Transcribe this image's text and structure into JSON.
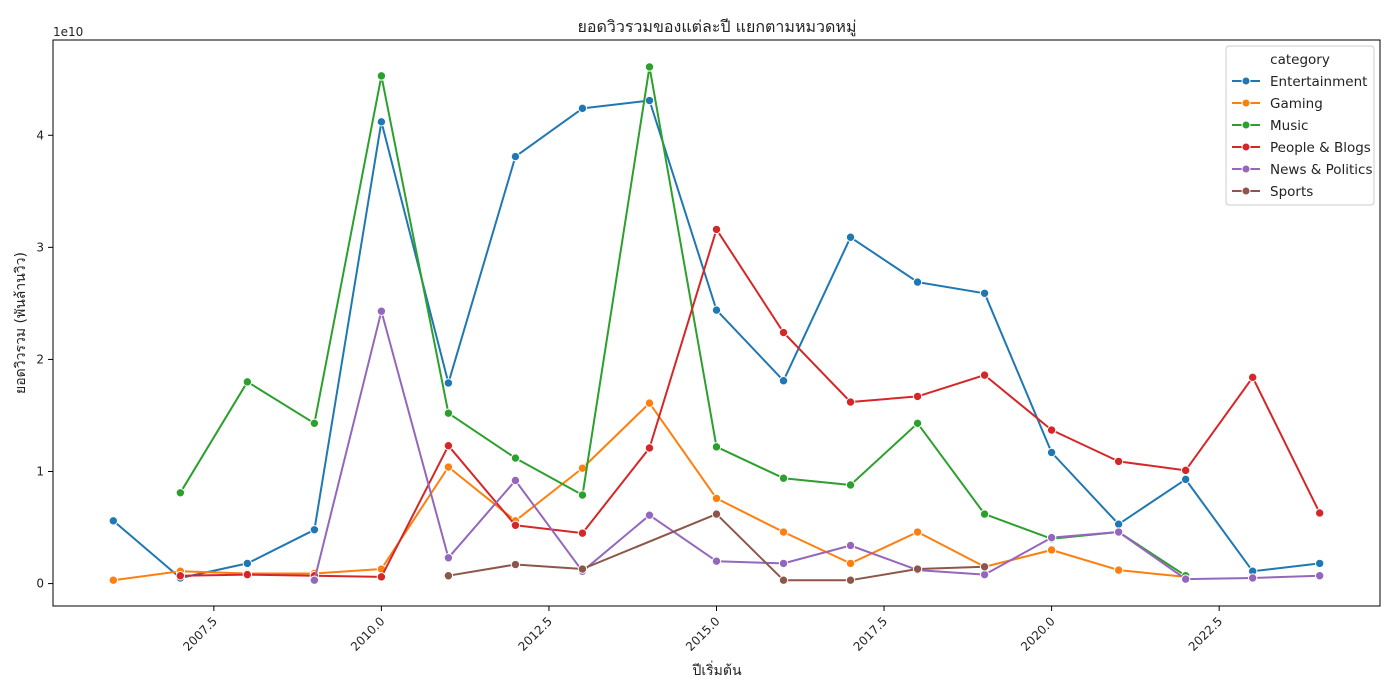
{
  "chart_data": {
    "type": "line",
    "title": "ยอดวิวรวมของแต่ละปี แยกตามหมวดหมู่",
    "xlabel": "ปีเริ่มต้น",
    "ylabel": "ยอดวิวรวม (พันล้านวิว)",
    "y_offset_label": "1e10",
    "xlim": [
      2005.1,
      2024.9
    ],
    "ylim": [
      -0.2,
      4.85
    ],
    "x_ticks": [
      2007.5,
      2010.0,
      2012.5,
      2015.0,
      2017.5,
      2020.0,
      2022.5
    ],
    "x_tick_labels": [
      "2007.5",
      "2010.0",
      "2012.5",
      "2015.0",
      "2017.5",
      "2020.0",
      "2022.5"
    ],
    "y_ticks": [
      0,
      1,
      2,
      3,
      4
    ],
    "y_tick_labels": [
      "0",
      "1",
      "2",
      "3",
      "4"
    ],
    "grid": false,
    "legend": {
      "title": "category",
      "placement": "top-right"
    },
    "series": [
      {
        "name": "Entertainment",
        "color": "#1f77b4",
        "x": [
          2006,
          2007,
          2008,
          2009,
          2010,
          2011,
          2012,
          2013,
          2014,
          2015,
          2016,
          2017,
          2018,
          2019,
          2020,
          2021,
          2022,
          2023,
          2024
        ],
        "y": [
          0.56,
          0.05,
          0.18,
          0.48,
          4.12,
          1.79,
          3.81,
          4.24,
          4.31,
          2.44,
          1.81,
          3.09,
          2.69,
          2.59,
          1.17,
          0.53,
          0.93,
          0.11,
          0.18
        ]
      },
      {
        "name": "Gaming",
        "color": "#ff7f0e",
        "x": [
          2006,
          2007,
          2008,
          2009,
          2010,
          2011,
          2012,
          2013,
          2014,
          2015,
          2016,
          2017,
          2018,
          2019,
          2020,
          2021,
          2022
        ],
        "y": [
          0.03,
          0.11,
          0.09,
          0.09,
          0.13,
          1.04,
          0.56,
          1.03,
          1.61,
          0.76,
          0.46,
          0.18,
          0.46,
          0.15,
          0.3,
          0.12,
          0.06
        ]
      },
      {
        "name": "Music",
        "color": "#2ca02c",
        "x": [
          2007,
          2008,
          2009,
          2010,
          2011,
          2012,
          2013,
          2014,
          2015,
          2016,
          2017,
          2018,
          2019,
          2020,
          2021,
          2022
        ],
        "y": [
          0.81,
          1.8,
          1.43,
          4.53,
          1.52,
          1.12,
          0.79,
          4.61,
          1.22,
          0.94,
          0.88,
          1.43,
          0.62,
          0.4,
          0.46,
          0.07
        ]
      },
      {
        "name": "People & Blogs",
        "color": "#d62728",
        "x": [
          2007,
          2008,
          2009,
          2010,
          2011,
          2012,
          2013,
          2014,
          2015,
          2016,
          2017,
          2018,
          2019,
          2020,
          2021,
          2022,
          2023,
          2024
        ],
        "y": [
          0.07,
          0.08,
          0.07,
          0.06,
          1.23,
          0.52,
          0.45,
          1.21,
          3.16,
          2.24,
          1.62,
          1.67,
          1.86,
          1.37,
          1.09,
          1.01,
          1.84,
          0.63
        ]
      },
      {
        "name": "News & Politics",
        "color": "#9467bd",
        "x": [
          2009,
          2010,
          2011,
          2012,
          2013,
          2014,
          2015,
          2016,
          2017,
          2018,
          2019,
          2020,
          2021,
          2022,
          2023,
          2024
        ],
        "y": [
          0.03,
          2.43,
          0.23,
          0.92,
          0.11,
          0.61,
          0.2,
          0.18,
          0.34,
          0.12,
          0.08,
          0.41,
          0.46,
          0.04,
          0.05,
          0.07
        ]
      },
      {
        "name": "Sports",
        "color": "#8c564b",
        "x": [
          2011,
          2012,
          2013,
          2015,
          2016,
          2017,
          2018,
          2019
        ],
        "y": [
          0.07,
          0.17,
          0.13,
          0.62,
          0.03,
          0.03,
          0.13,
          0.15
        ]
      }
    ]
  }
}
